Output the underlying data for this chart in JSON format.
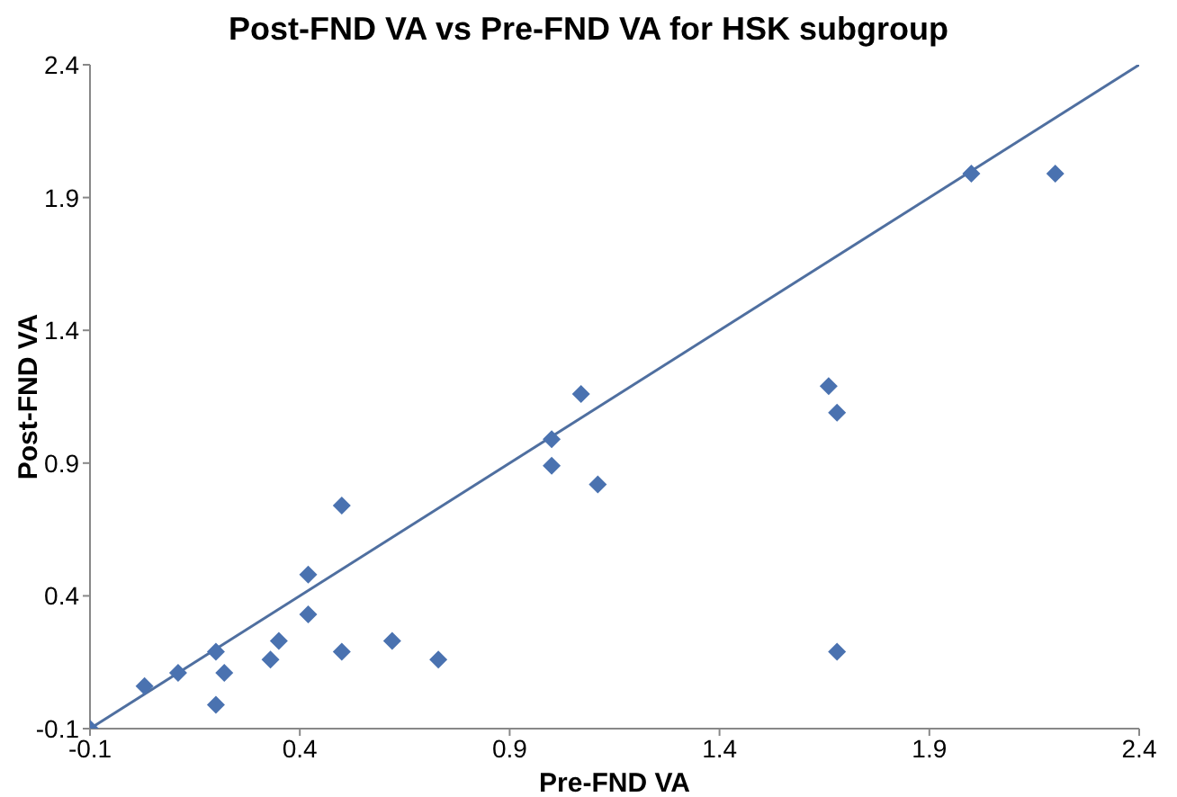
{
  "chart_data": {
    "type": "scatter",
    "title": "Post-FND VA vs Pre-FND VA for HSK subgroup",
    "xlabel": "Pre-FND VA",
    "ylabel": "Post-FND VA",
    "xlim": [
      -0.1,
      2.4
    ],
    "xticks": [
      -0.1,
      0.4,
      0.9,
      1.4,
      1.9,
      2.4
    ],
    "ylim": [
      -0.1,
      2.4
    ],
    "yticks": [
      -0.1,
      0.4,
      0.9,
      1.4,
      1.9,
      2.4
    ],
    "grid": false,
    "legend": false,
    "series": [
      {
        "color": "#4a72b0",
        "marker": "diamond",
        "x": [
          -0.1,
          0.03,
          0.11,
          0.2,
          0.22,
          0.2,
          0.33,
          0.35,
          0.42,
          0.42,
          0.5,
          0.62,
          0.73,
          0.5,
          1.0,
          1.0,
          1.07,
          1.11,
          1.66,
          1.68,
          1.68,
          2.0,
          2.2
        ],
        "values": [
          -0.1,
          0.06,
          0.11,
          0.19,
          0.11,
          -0.01,
          0.16,
          0.23,
          0.33,
          0.48,
          0.19,
          0.23,
          0.16,
          0.74,
          0.99,
          0.89,
          1.16,
          0.82,
          1.19,
          1.09,
          0.19,
          1.99,
          1.99
        ]
      },
      {
        "type": "line",
        "color": "#4f6fa0",
        "x": [
          -0.1,
          2.4
        ],
        "values": [
          -0.1,
          2.4
        ]
      }
    ]
  }
}
